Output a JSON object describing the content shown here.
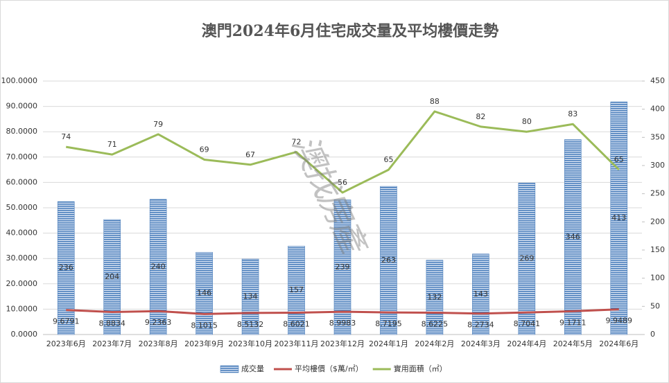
{
  "chart_data": {
    "type": "combo",
    "title": "澳門2024年6月住宅成交量及平均樓價走勢",
    "watermark": "澳找房產",
    "categories": [
      "2023年6月",
      "2023年7月",
      "2023年8月",
      "2023年9月",
      "2023年10月",
      "2023年11月",
      "2023年12月",
      "2024年1月",
      "2024年2月",
      "2024年3月",
      "2024年4月",
      "2024年5月",
      "2024年6月"
    ],
    "ylim": [
      0,
      100
    ],
    "yticks": [
      {
        "value": 0,
        "label": "0.0000"
      },
      {
        "value": 10,
        "label": "10.0000"
      },
      {
        "value": 20,
        "label": "20.0000"
      },
      {
        "value": 30,
        "label": "30.0000"
      },
      {
        "value": 40,
        "label": "40.0000"
      },
      {
        "value": 50,
        "label": "50.0000"
      },
      {
        "value": 60,
        "label": "60.0000"
      },
      {
        "value": 70,
        "label": "70.0000"
      },
      {
        "value": 80,
        "label": "80.0000"
      },
      {
        "value": 90,
        "label": "90.0000"
      },
      {
        "value": 100,
        "label": "100.0000"
      }
    ],
    "y2lim": [
      0,
      450
    ],
    "y2ticks": [
      0,
      50,
      100,
      150,
      200,
      250,
      300,
      350,
      400,
      450
    ],
    "grid": true,
    "legend": "bottom",
    "series": [
      {
        "name": "成交量",
        "type": "bar",
        "axis": "y2",
        "color": "#4a7ebb",
        "values": [
          236,
          204,
          240,
          146,
          134,
          157,
          239,
          263,
          132,
          143,
          269,
          346,
          413
        ]
      },
      {
        "name": "平均樓價（$萬/㎡）",
        "type": "line",
        "color": "#c0504d",
        "values": [
          9.6791,
          8.8834,
          9.2363,
          8.1015,
          8.5132,
          8.6021,
          8.9983,
          8.7195,
          8.6225,
          8.2734,
          8.7041,
          9.1711,
          9.9489
        ]
      },
      {
        "name": "實用面積（㎡）",
        "type": "line",
        "color": "#9bbb59",
        "values": [
          74,
          71,
          79,
          69,
          67,
          72,
          56,
          65,
          88,
          82,
          80,
          83,
          65
        ]
      }
    ]
  }
}
